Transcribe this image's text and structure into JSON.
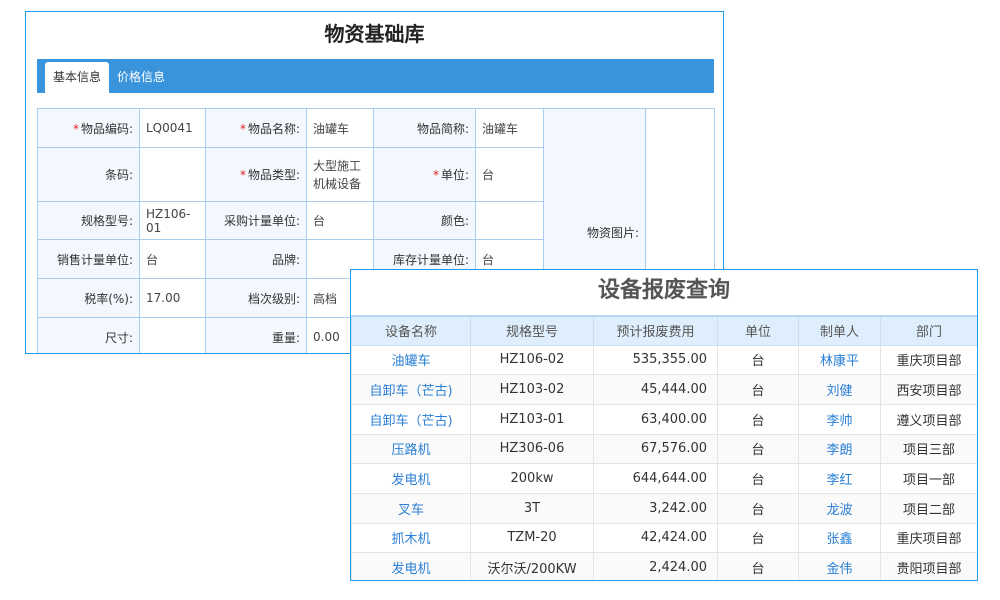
{
  "material_library": {
    "title": "物资基础库",
    "tabs": [
      {
        "label": "基本信息",
        "active": true
      },
      {
        "label": "价格信息",
        "active": false
      }
    ],
    "fields": {
      "code": {
        "label": "物品编码:",
        "value": "LQ0041",
        "required": true
      },
      "name": {
        "label": "物品名称:",
        "value": "油罐车",
        "required": true
      },
      "short_name": {
        "label": "物品简称:",
        "value": "油罐车"
      },
      "barcode": {
        "label": "条码:",
        "value": ""
      },
      "type": {
        "label": "物品类型:",
        "value": "大型施工机械设备",
        "required": true
      },
      "unit": {
        "label": "单位:",
        "value": "台",
        "required": true
      },
      "spec": {
        "label": "规格型号:",
        "value": "HZ106-01"
      },
      "purchase_unit": {
        "label": "采购计量单位:",
        "value": "台"
      },
      "color": {
        "label": "颜色:",
        "value": ""
      },
      "image": {
        "label": "物资图片:"
      },
      "sales_unit": {
        "label": "销售计量单位:",
        "value": "台"
      },
      "brand": {
        "label": "品牌:",
        "value": ""
      },
      "stock_unit": {
        "label": "库存计量单位:",
        "value": "台"
      },
      "tax_rate": {
        "label": "税率(%):",
        "value": "17.00"
      },
      "grade": {
        "label": "档次级别:",
        "value": "高档"
      },
      "size": {
        "label": "尺寸:",
        "value": ""
      },
      "weight": {
        "label": "重量:",
        "value": "0.00"
      }
    }
  },
  "scrap_query": {
    "title": "设备报废查询",
    "columns": [
      "设备名称",
      "规格型号",
      "预计报废费用",
      "单位",
      "制单人",
      "部门"
    ],
    "rows": [
      [
        "油罐车",
        "HZ106-02",
        "535,355.00",
        "台",
        "林康平",
        "重庆项目部"
      ],
      [
        "自卸车（芒古)",
        "HZ103-02",
        "45,444.00",
        "台",
        "刘健",
        "西安项目部"
      ],
      [
        "自卸车（芒古)",
        "HZ103-01",
        "63,400.00",
        "台",
        "李帅",
        "遵义项目部"
      ],
      [
        "压路机",
        "HZ306-06",
        "67,576.00",
        "台",
        "李朗",
        "项目三部"
      ],
      [
        "发电机",
        "200kw",
        "644,644.00",
        "台",
        "李红",
        "项目一部"
      ],
      [
        "叉车",
        "3T",
        "3,242.00",
        "台",
        "龙波",
        "项目二部"
      ],
      [
        "抓木机",
        "TZM-20",
        "42,424.00",
        "台",
        "张鑫",
        "重庆项目部"
      ],
      [
        "发电机",
        "沃尔沃/200KW",
        "2,424.00",
        "台",
        "金伟",
        "贵阳项目部"
      ]
    ]
  },
  "colors": {
    "accent": "#3a94dc",
    "border": "#1e9be8",
    "link": "#2a7fd4",
    "required": "#e02020"
  }
}
